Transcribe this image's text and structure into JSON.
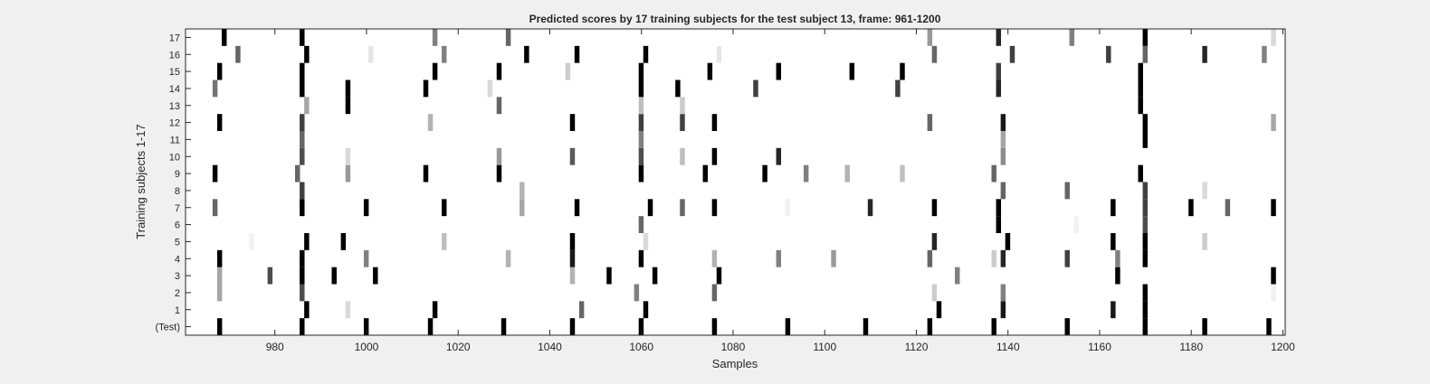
{
  "chart_data": {
    "type": "heatmap",
    "title": "Predicted scores by 17 training subjects for the test subject 13, frame: 961-1200",
    "xlabel": "Samples",
    "ylabel": "Training subjects 1-17",
    "xlim": [
      961,
      1200
    ],
    "x_ticks": [
      980,
      1000,
      1020,
      1040,
      1060,
      1080,
      1100,
      1120,
      1140,
      1160,
      1180,
      1200
    ],
    "rows": [
      "(Test)",
      "1",
      "2",
      "3",
      "4",
      "5",
      "6",
      "7",
      "8",
      "9",
      "10",
      "11",
      "12",
      "13",
      "14",
      "15",
      "16",
      "17"
    ],
    "colormap": "gray (black = high score, white = zero)",
    "grid": false,
    "series": [
      {
        "row": "(Test)",
        "events": [
          [
            968,
            1.0
          ],
          [
            986,
            1.0
          ],
          [
            1000,
            1.0
          ],
          [
            1014,
            1.0
          ],
          [
            1030,
            1.0
          ],
          [
            1045,
            1.0
          ],
          [
            1060,
            1.0
          ],
          [
            1076,
            1.0
          ],
          [
            1092,
            1.0
          ],
          [
            1109,
            1.0
          ],
          [
            1123,
            1.0
          ],
          [
            1137,
            1.0
          ],
          [
            1153,
            1.0
          ],
          [
            1170,
            1.0
          ],
          [
            1183,
            1.0
          ],
          [
            1197,
            1.0
          ]
        ]
      },
      {
        "row": "1",
        "events": [
          [
            987,
            1.0
          ],
          [
            996,
            0.15
          ],
          [
            1015,
            1.0
          ],
          [
            1047,
            0.6
          ],
          [
            1061,
            1.0
          ],
          [
            1125,
            1.0
          ],
          [
            1139,
            0.9
          ],
          [
            1163,
            0.9
          ],
          [
            1170,
            1.0
          ]
        ]
      },
      {
        "row": "2",
        "events": [
          [
            968,
            0.35
          ],
          [
            986,
            0.7
          ],
          [
            1059,
            0.5
          ],
          [
            1076,
            0.6
          ],
          [
            1124,
            0.2
          ],
          [
            1139,
            0.5
          ],
          [
            1170,
            1.0
          ],
          [
            1198,
            0.05
          ]
        ]
      },
      {
        "row": "3",
        "events": [
          [
            968,
            0.35
          ],
          [
            979,
            0.7
          ],
          [
            986,
            1.0
          ],
          [
            993,
            1.0
          ],
          [
            1002,
            1.0
          ],
          [
            1045,
            0.3
          ],
          [
            1053,
            1.0
          ],
          [
            1063,
            1.0
          ],
          [
            1077,
            1.0
          ],
          [
            1129,
            0.5
          ],
          [
            1164,
            1.0
          ],
          [
            1198,
            1.0
          ]
        ]
      },
      {
        "row": "4",
        "events": [
          [
            968,
            1.0
          ],
          [
            986,
            1.0
          ],
          [
            1000,
            0.5
          ],
          [
            1031,
            0.3
          ],
          [
            1045,
            0.9
          ],
          [
            1060,
            1.0
          ],
          [
            1076,
            0.3
          ],
          [
            1090,
            0.5
          ],
          [
            1102,
            0.4
          ],
          [
            1123,
            0.6
          ],
          [
            1137,
            0.2
          ],
          [
            1139,
            0.85
          ],
          [
            1153,
            0.75
          ],
          [
            1164,
            0.5
          ],
          [
            1170,
            1.0
          ]
        ]
      },
      {
        "row": "5",
        "events": [
          [
            975,
            0.05
          ],
          [
            987,
            1.0
          ],
          [
            995,
            1.0
          ],
          [
            1017,
            0.25
          ],
          [
            1045,
            1.0
          ],
          [
            1061,
            0.15
          ],
          [
            1124,
            0.85
          ],
          [
            1140,
            1.0
          ],
          [
            1163,
            1.0
          ],
          [
            1170,
            1.0
          ],
          [
            1183,
            0.2
          ]
        ]
      },
      {
        "row": "6",
        "events": [
          [
            1060,
            0.6
          ],
          [
            1138,
            1.0
          ],
          [
            1155,
            0.05
          ],
          [
            1170,
            0.7
          ]
        ]
      },
      {
        "row": "7",
        "events": [
          [
            967,
            0.6
          ],
          [
            986,
            1.0
          ],
          [
            1000,
            1.0
          ],
          [
            1017,
            1.0
          ],
          [
            1034,
            0.35
          ],
          [
            1046,
            1.0
          ],
          [
            1062,
            1.0
          ],
          [
            1069,
            0.6
          ],
          [
            1076,
            1.0
          ],
          [
            1092,
            0.05
          ],
          [
            1110,
            0.85
          ],
          [
            1124,
            1.0
          ],
          [
            1138,
            1.0
          ],
          [
            1163,
            1.0
          ],
          [
            1170,
            0.75
          ],
          [
            1180,
            1.0
          ],
          [
            1188,
            0.6
          ],
          [
            1198,
            1.0
          ]
        ]
      },
      {
        "row": "8",
        "events": [
          [
            986,
            0.75
          ],
          [
            1034,
            0.3
          ],
          [
            1139,
            0.6
          ],
          [
            1153,
            0.6
          ],
          [
            1170,
            0.75
          ],
          [
            1183,
            0.15
          ]
        ]
      },
      {
        "row": "9",
        "events": [
          [
            967,
            1.0
          ],
          [
            985,
            0.6
          ],
          [
            996,
            0.4
          ],
          [
            1013,
            1.0
          ],
          [
            1029,
            1.0
          ],
          [
            1060,
            1.0
          ],
          [
            1074,
            1.0
          ],
          [
            1087,
            1.0
          ],
          [
            1096,
            0.5
          ],
          [
            1105,
            0.3
          ],
          [
            1117,
            0.25
          ],
          [
            1137,
            0.6
          ],
          [
            1169,
            1.0
          ]
        ]
      },
      {
        "row": "10",
        "events": [
          [
            986,
            0.7
          ],
          [
            996,
            0.15
          ],
          [
            1029,
            0.4
          ],
          [
            1045,
            0.65
          ],
          [
            1060,
            0.7
          ],
          [
            1069,
            0.25
          ],
          [
            1076,
            1.0
          ],
          [
            1090,
            0.85
          ],
          [
            1139,
            0.45
          ]
        ]
      },
      {
        "row": "11",
        "events": [
          [
            986,
            0.6
          ],
          [
            1060,
            0.5
          ],
          [
            1139,
            0.35
          ],
          [
            1170,
            1.0
          ]
        ]
      },
      {
        "row": "12",
        "events": [
          [
            968,
            1.0
          ],
          [
            986,
            0.75
          ],
          [
            1014,
            0.3
          ],
          [
            1045,
            1.0
          ],
          [
            1060,
            0.75
          ],
          [
            1069,
            0.75
          ],
          [
            1076,
            1.0
          ],
          [
            1123,
            0.6
          ],
          [
            1139,
            0.9
          ],
          [
            1170,
            1.0
          ],
          [
            1198,
            0.35
          ]
        ]
      },
      {
        "row": "13",
        "events": [
          [
            987,
            0.35
          ],
          [
            996,
            1.0
          ],
          [
            1029,
            0.6
          ],
          [
            1060,
            0.25
          ],
          [
            1069,
            0.2
          ],
          [
            1169,
            1.0
          ]
        ]
      },
      {
        "row": "14",
        "events": [
          [
            967,
            0.55
          ],
          [
            986,
            1.0
          ],
          [
            996,
            1.0
          ],
          [
            1013,
            1.0
          ],
          [
            1027,
            0.15
          ],
          [
            1060,
            1.0
          ],
          [
            1068,
            1.0
          ],
          [
            1085,
            0.75
          ],
          [
            1116,
            0.75
          ],
          [
            1138,
            0.85
          ],
          [
            1169,
            1.0
          ]
        ]
      },
      {
        "row": "15",
        "events": [
          [
            968,
            1.0
          ],
          [
            986,
            1.0
          ],
          [
            1015,
            1.0
          ],
          [
            1029,
            1.0
          ],
          [
            1044,
            0.2
          ],
          [
            1060,
            1.0
          ],
          [
            1075,
            1.0
          ],
          [
            1090,
            1.0
          ],
          [
            1106,
            1.0
          ],
          [
            1117,
            1.0
          ],
          [
            1138,
            0.75
          ],
          [
            1169,
            1.0
          ]
        ]
      },
      {
        "row": "16",
        "events": [
          [
            972,
            0.6
          ],
          [
            987,
            1.0
          ],
          [
            1001,
            0.1
          ],
          [
            1017,
            0.5
          ],
          [
            1035,
            1.0
          ],
          [
            1046,
            1.0
          ],
          [
            1061,
            1.0
          ],
          [
            1077,
            0.1
          ],
          [
            1124,
            0.6
          ],
          [
            1141,
            0.75
          ],
          [
            1162,
            0.75
          ],
          [
            1170,
            0.6
          ],
          [
            1183,
            0.85
          ],
          [
            1196,
            0.5
          ]
        ]
      },
      {
        "row": "17",
        "events": [
          [
            969,
            1.0
          ],
          [
            986,
            1.0
          ],
          [
            1015,
            0.5
          ],
          [
            1031,
            0.6
          ],
          [
            1123,
            0.4
          ],
          [
            1138,
            0.85
          ],
          [
            1154,
            0.5
          ],
          [
            1170,
            1.0
          ],
          [
            1198,
            0.15
          ]
        ]
      }
    ]
  }
}
